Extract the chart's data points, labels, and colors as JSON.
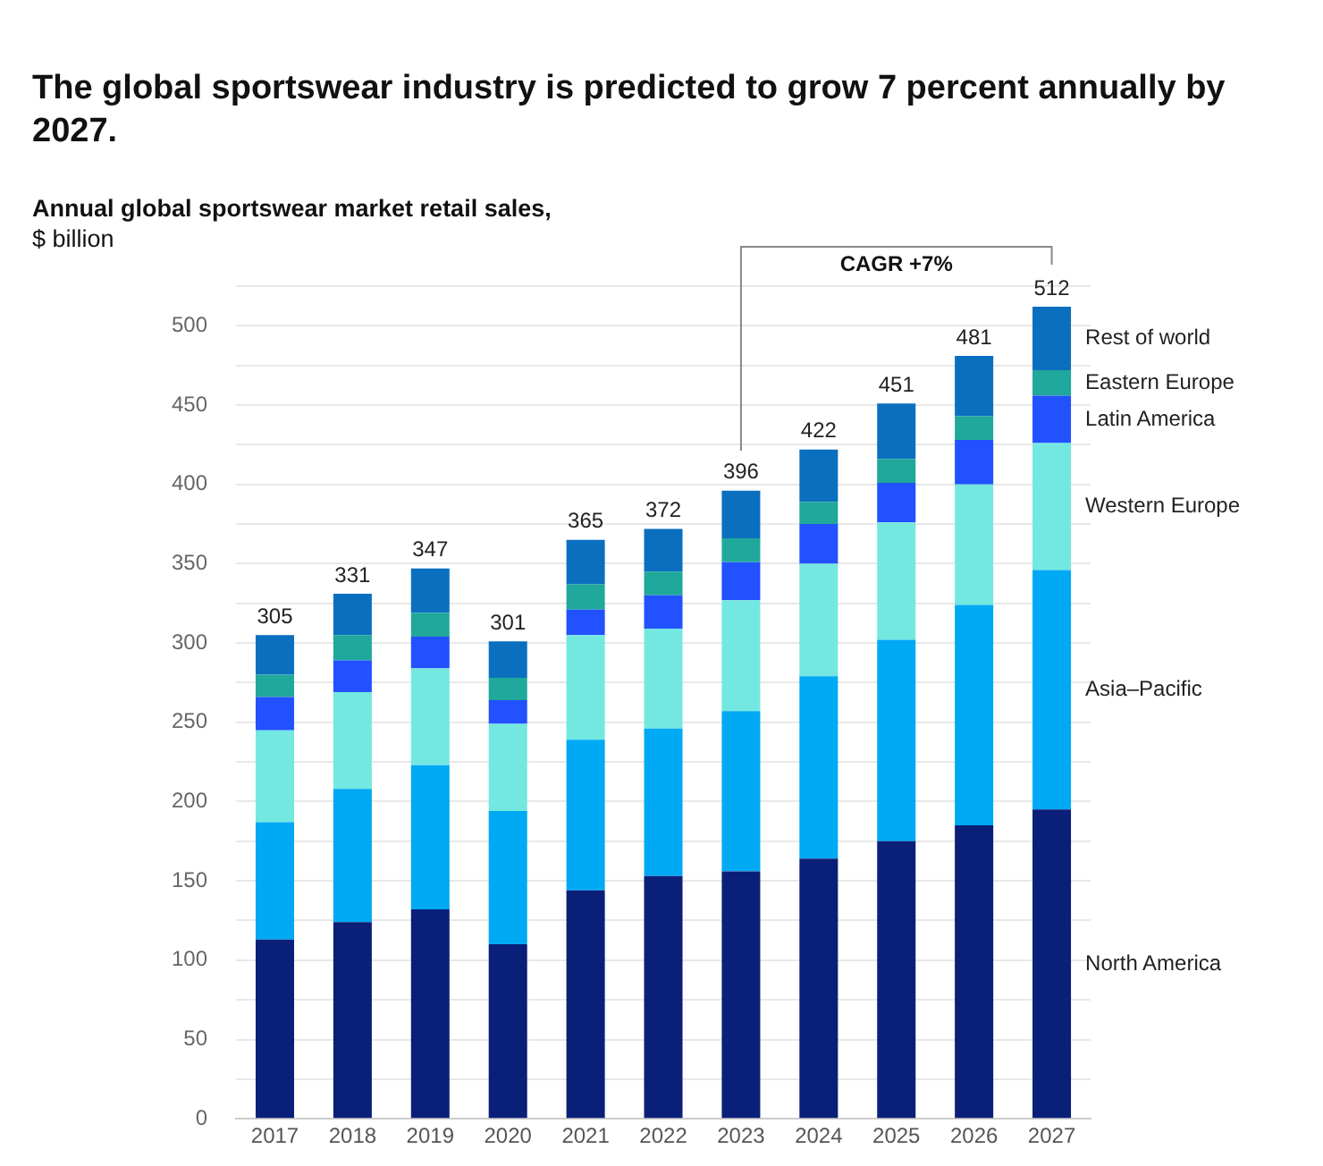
{
  "chart_data": {
    "type": "bar",
    "stacked": true,
    "title": "The global sportswear industry is predicted to grow 7 percent annually by 2027.",
    "ylabel": "Annual global sportswear market retail sales, $ billion",
    "categories": [
      "2017",
      "2018",
      "2019",
      "2020",
      "2021",
      "2022",
      "2023",
      "2024",
      "2025",
      "2026",
      "2027"
    ],
    "series": [
      {
        "name": "North America",
        "color": "#0a1f78",
        "values": [
          113,
          124,
          132,
          110,
          144,
          153,
          156,
          164,
          175,
          185,
          195
        ]
      },
      {
        "name": "Asia–Pacific",
        "color": "#00a9f4",
        "values": [
          74,
          84,
          91,
          84,
          95,
          93,
          101,
          115,
          127,
          139,
          151
        ]
      },
      {
        "name": "Western Europe",
        "color": "#73e8e0",
        "values": [
          58,
          61,
          61,
          55,
          66,
          63,
          70,
          71,
          74,
          76,
          80
        ]
      },
      {
        "name": "Latin America",
        "color": "#2251ff",
        "values": [
          21,
          20,
          20,
          15,
          16,
          21,
          24,
          25,
          25,
          28,
          30
        ]
      },
      {
        "name": "Eastern Europe",
        "color": "#1fa89b",
        "values": [
          14,
          16,
          15,
          14,
          16,
          15,
          15,
          14,
          15,
          15,
          16
        ]
      },
      {
        "name": "Rest of world",
        "color": "#0b6fc0",
        "values": [
          25,
          26,
          28,
          23,
          28,
          27,
          30,
          33,
          35,
          38,
          40
        ]
      }
    ],
    "totals": [
      "305",
      "331",
      "347",
      "301",
      "365",
      "372",
      "396",
      "422",
      "451",
      "481",
      "512"
    ],
    "ylim": [
      0,
      525
    ],
    "yticks": [
      0,
      {
        "value": 25,
        "label": null
      },
      50,
      {
        "value": 75,
        "label": null
      },
      100,
      {
        "value": 125,
        "label": null
      },
      150,
      {
        "value": 175,
        "label": null
      },
      200,
      {
        "value": 225,
        "label": null
      },
      250,
      {
        "value": 275,
        "label": null
      },
      300,
      {
        "value": 325,
        "label": null
      },
      350,
      {
        "value": 375,
        "label": null
      },
      400,
      {
        "value": 425,
        "label": null
      },
      450,
      {
        "value": 475,
        "label": null
      },
      500,
      {
        "value": 525,
        "label": null
      }
    ],
    "grid": "y",
    "legend": false,
    "annotations": [
      "CAGR +7%"
    ]
  }
}
